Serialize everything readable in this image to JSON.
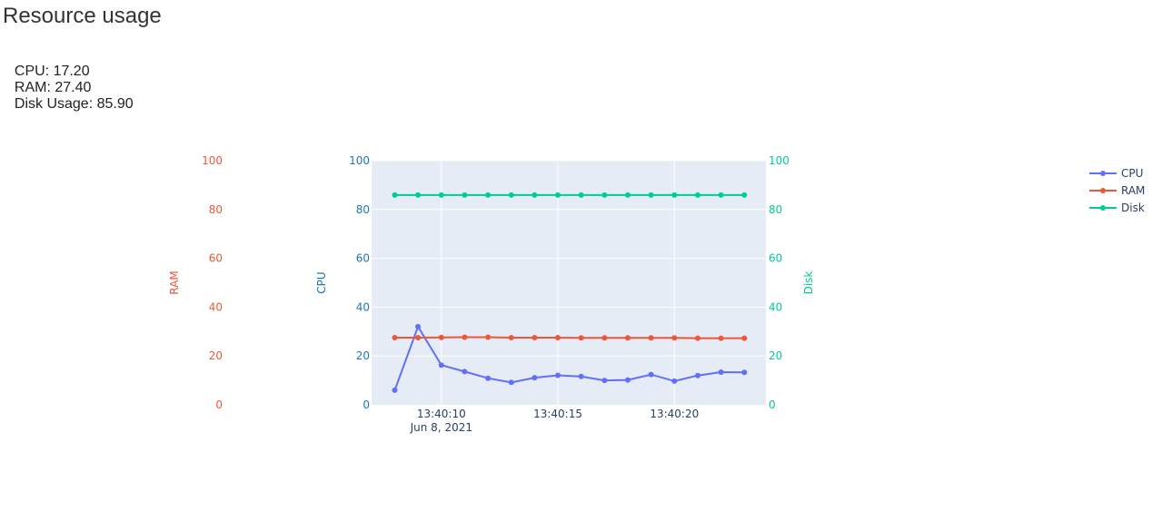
{
  "page": {
    "title": "Resource usage",
    "stats": [
      {
        "label": "CPU: 17.20"
      },
      {
        "label": "RAM: 27.40"
      },
      {
        "label": "Disk Usage: 85.90"
      }
    ]
  },
  "colors": {
    "cpu": "#636efa",
    "ram": "#ef553b",
    "disk": "#00cc96",
    "plot_bg": "#e5ecf6",
    "axis_text": "#2a3f5f"
  },
  "chart_data": {
    "type": "line",
    "x": [
      "13:40:08",
      "13:40:09",
      "13:40:10",
      "13:40:11",
      "13:40:12",
      "13:40:13",
      "13:40:14",
      "13:40:15",
      "13:40:16",
      "13:40:17",
      "13:40:18",
      "13:40:19",
      "13:40:20",
      "13:40:21",
      "13:40:22",
      "13:40:23"
    ],
    "x_ticks": [
      {
        "value": "13:40:10",
        "label": "13:40:10",
        "sublabel": "Jun 8, 2021"
      },
      {
        "value": "13:40:15",
        "label": "13:40:15",
        "sublabel": ""
      },
      {
        "value": "13:40:20",
        "label": "13:40:20",
        "sublabel": ""
      }
    ],
    "series": [
      {
        "name": "CPU",
        "axis": "CPU",
        "color": "#636efa",
        "values": [
          6.0,
          32.0,
          16.3,
          13.6,
          10.9,
          9.2,
          11.1,
          12.1,
          11.6,
          10.0,
          10.2,
          12.4,
          9.7,
          12.0,
          13.4,
          13.3
        ]
      },
      {
        "name": "RAM",
        "axis": "RAM",
        "color": "#ef553b",
        "values": [
          27.5,
          27.5,
          27.6,
          27.7,
          27.7,
          27.5,
          27.5,
          27.5,
          27.4,
          27.4,
          27.4,
          27.4,
          27.4,
          27.3,
          27.3,
          27.3
        ]
      },
      {
        "name": "Disk",
        "axis": "Disk",
        "color": "#00cc96",
        "values": [
          85.9,
          85.9,
          85.9,
          85.9,
          85.9,
          85.9,
          85.9,
          85.9,
          85.9,
          85.9,
          85.9,
          85.9,
          85.9,
          85.9,
          85.9,
          85.9
        ]
      }
    ],
    "y_axes": [
      {
        "name": "RAM",
        "title": "RAM",
        "color": "#ef553b",
        "range": [
          0,
          100
        ],
        "ticks": [
          0,
          20,
          40,
          60,
          80,
          100
        ]
      },
      {
        "name": "CPU",
        "title": "CPU",
        "color": "#1f77b4",
        "range": [
          0,
          100
        ],
        "ticks": [
          0,
          20,
          40,
          60,
          80,
          100
        ]
      },
      {
        "name": "Disk",
        "title": "Disk",
        "color": "#00cc96",
        "range": [
          0,
          100
        ],
        "ticks": [
          0,
          20,
          40,
          60,
          80,
          100
        ]
      }
    ],
    "legend": {
      "position": "top-right",
      "entries": [
        "CPU",
        "RAM",
        "Disk"
      ]
    },
    "grid": true
  }
}
